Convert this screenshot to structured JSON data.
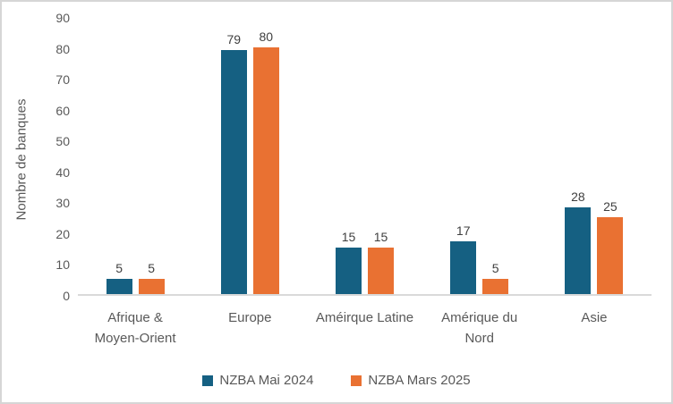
{
  "chart_data": {
    "type": "bar",
    "title": "",
    "xlabel": "",
    "ylabel": "Nombre de banques",
    "ylim": [
      0,
      90
    ],
    "ytick_step": 10,
    "ytick_labels": [
      "0",
      "10",
      "20",
      "30",
      "40",
      "50",
      "60",
      "70",
      "80",
      "90"
    ],
    "categories": [
      "Afrique & Moyen-Orient",
      "Europe",
      "Améirque Latine",
      "Amérique du Nord",
      "Asie"
    ],
    "series": [
      {
        "name": "NZBA Mai 2024",
        "color": "#156082",
        "values": [
          5,
          79,
          15,
          17,
          28
        ]
      },
      {
        "name": "NZBA Mars 2025",
        "color": "#e97132",
        "values": [
          5,
          80,
          15,
          5,
          25
        ]
      }
    ],
    "data_labels": true,
    "grid": false,
    "legend_position": "bottom",
    "colors": {
      "axis_line": "#d9d9d9",
      "axis_text": "#595959",
      "data_label_text": "#404040",
      "background": "#ffffff",
      "border": "#d6d6d6"
    }
  }
}
